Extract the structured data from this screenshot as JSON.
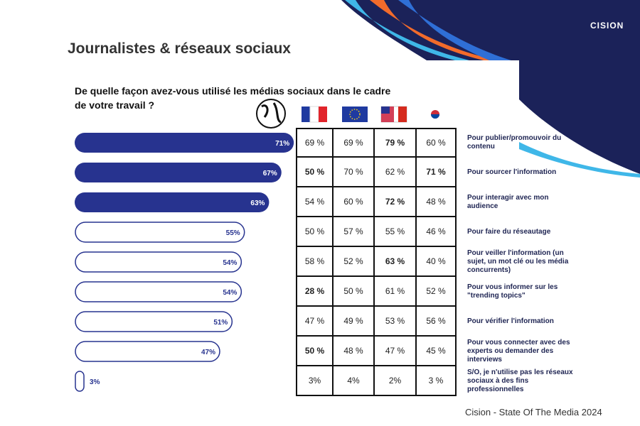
{
  "chart_data": {
    "type": "bar",
    "orientation": "horizontal",
    "title": "Journalistes & réseaux sociaux",
    "subtitle": "De quelle façon avez-vous utilisé les médias sociaux dans le cadre de votre travail ?",
    "categories": [
      "Pour publier/promouvoir du contenu",
      "Pour sourcer l'information",
      "Pour interagir avec mon audience",
      "Pour faire du réseautage",
      "Pour veiller l'information (un sujet, un mot clé ou les média concurrents)",
      "Pour vous informer sur les \"trending topics\"",
      "Pour vérifier l'information",
      "Pour vous connecter avec des experts ou demander des interviews",
      "S/O, je n'utilise pas les réseaux sociaux à des fins professionnelles"
    ],
    "values": [
      71,
      67,
      63,
      55,
      54,
      54,
      51,
      47,
      3
    ],
    "value_labels": [
      "71%",
      "67%",
      "63%",
      "55%",
      "54%",
      "54%",
      "51%",
      "47%",
      "3%"
    ],
    "filled": [
      true,
      true,
      true,
      false,
      false,
      false,
      false,
      false,
      false
    ],
    "color": "#27338f",
    "xlim": [
      0,
      100
    ]
  },
  "table": {
    "rows": [
      [
        "69 %",
        "69 %",
        "79 %",
        "60 %"
      ],
      [
        "50 %",
        "70 %",
        "62 %",
        "71 %"
      ],
      [
        "54 %",
        "60 %",
        "72 %",
        "48 %"
      ],
      [
        "50 %",
        "57 %",
        "55 %",
        "46 %"
      ],
      [
        "58 %",
        "52 %",
        "63 %",
        "40 %"
      ],
      [
        "28 %",
        "50 %",
        "61 %",
        "52 %"
      ],
      [
        "47 %",
        "49 %",
        "53 %",
        "56 %"
      ],
      [
        "50 %",
        "48 %",
        "47 %",
        "45 %"
      ],
      [
        "3%",
        "4%",
        "2%",
        "3 %"
      ]
    ],
    "bold": [
      [
        0,
        2
      ],
      [
        1,
        0
      ],
      [
        1,
        3
      ],
      [
        2,
        2
      ],
      [
        4,
        2
      ],
      [
        5,
        0
      ],
      [
        7,
        0
      ]
    ]
  },
  "logo": "CISION",
  "footer": "Cision - State Of The Media 2024"
}
